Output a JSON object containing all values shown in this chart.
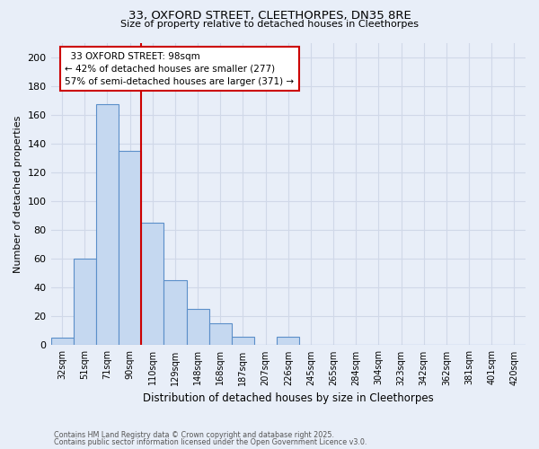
{
  "title_line1": "33, OXFORD STREET, CLEETHORPES, DN35 8RE",
  "title_line2": "Size of property relative to detached houses in Cleethorpes",
  "xlabel": "Distribution of detached houses by size in Cleethorpes",
  "ylabel": "Number of detached properties",
  "categories": [
    "32sqm",
    "51sqm",
    "71sqm",
    "90sqm",
    "110sqm",
    "129sqm",
    "148sqm",
    "168sqm",
    "187sqm",
    "207sqm",
    "226sqm",
    "245sqm",
    "265sqm",
    "284sqm",
    "304sqm",
    "323sqm",
    "342sqm",
    "362sqm",
    "381sqm",
    "401sqm",
    "420sqm"
  ],
  "values": [
    5,
    60,
    167,
    135,
    85,
    45,
    25,
    15,
    6,
    0,
    6,
    0,
    0,
    0,
    0,
    0,
    0,
    0,
    0,
    0,
    0
  ],
  "bar_color": "#c5d8f0",
  "bar_edge_color": "#5b8fc9",
  "bg_color": "#e8eef8",
  "grid_color": "#d0d8e8",
  "property_label": "33 OXFORD STREET: 98sqm",
  "pct_smaller": 42,
  "n_smaller": 277,
  "pct_larger": 57,
  "n_larger": 371,
  "annotation_box_edge_color": "#cc0000",
  "vline_color": "#cc0000",
  "footnote1": "Contains HM Land Registry data © Crown copyright and database right 2025.",
  "footnote2": "Contains public sector information licensed under the Open Government Licence v3.0.",
  "ylim": [
    0,
    210
  ],
  "yticks": [
    0,
    20,
    40,
    60,
    80,
    100,
    120,
    140,
    160,
    180,
    200
  ]
}
